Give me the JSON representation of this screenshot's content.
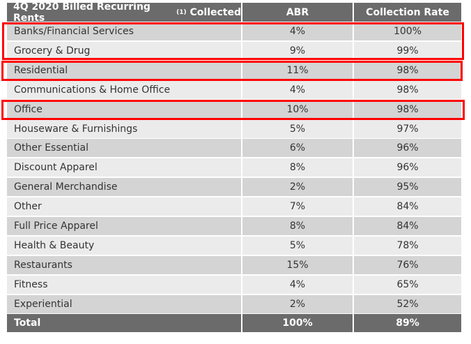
{
  "header": {
    "col1_main": "4Q 2020 Billed Recurring Rents",
    "col1_sup": "(1)",
    "col1_tail": " Collected",
    "col2": "ABR",
    "col3": "Collection Rate"
  },
  "rows": [
    {
      "category": "Banks/Financial Services",
      "abr": "4%",
      "rate": "100%",
      "highlighted": true
    },
    {
      "category": "Grocery & Drug",
      "abr": "9%",
      "rate": "99%",
      "highlighted": true
    },
    {
      "category": "Residential",
      "abr": "11%",
      "rate": "98%",
      "highlighted": true
    },
    {
      "category": "Communications & Home Office",
      "abr": "4%",
      "rate": "98%",
      "highlighted": false
    },
    {
      "category": "Office",
      "abr": "10%",
      "rate": "98%",
      "highlighted": true
    },
    {
      "category": "Houseware & Furnishings",
      "abr": "5%",
      "rate": "97%",
      "highlighted": false
    },
    {
      "category": "Other Essential",
      "abr": "6%",
      "rate": "96%",
      "highlighted": false
    },
    {
      "category": "Discount Apparel",
      "abr": "8%",
      "rate": "96%",
      "highlighted": false
    },
    {
      "category": "General Merchandise",
      "abr": "2%",
      "rate": "95%",
      "highlighted": false
    },
    {
      "category": "Other",
      "abr": "7%",
      "rate": "84%",
      "highlighted": false
    },
    {
      "category": "Full Price Apparel",
      "abr": "8%",
      "rate": "84%",
      "highlighted": false
    },
    {
      "category": "Health & Beauty",
      "abr": "5%",
      "rate": "78%",
      "highlighted": false
    },
    {
      "category": "Restaurants",
      "abr": "15%",
      "rate": "76%",
      "highlighted": false
    },
    {
      "category": "Fitness",
      "abr": "4%",
      "rate": "65%",
      "highlighted": false
    },
    {
      "category": "Experiential",
      "abr": "2%",
      "rate": "52%",
      "highlighted": false
    }
  ],
  "total": {
    "label": "Total",
    "abr": "100%",
    "rate": "89%"
  },
  "colors": {
    "header_bg": "#6b6b6b",
    "row_dark": "#d4d4d4",
    "row_light": "#ebebeb",
    "highlight": "#ff0000"
  }
}
